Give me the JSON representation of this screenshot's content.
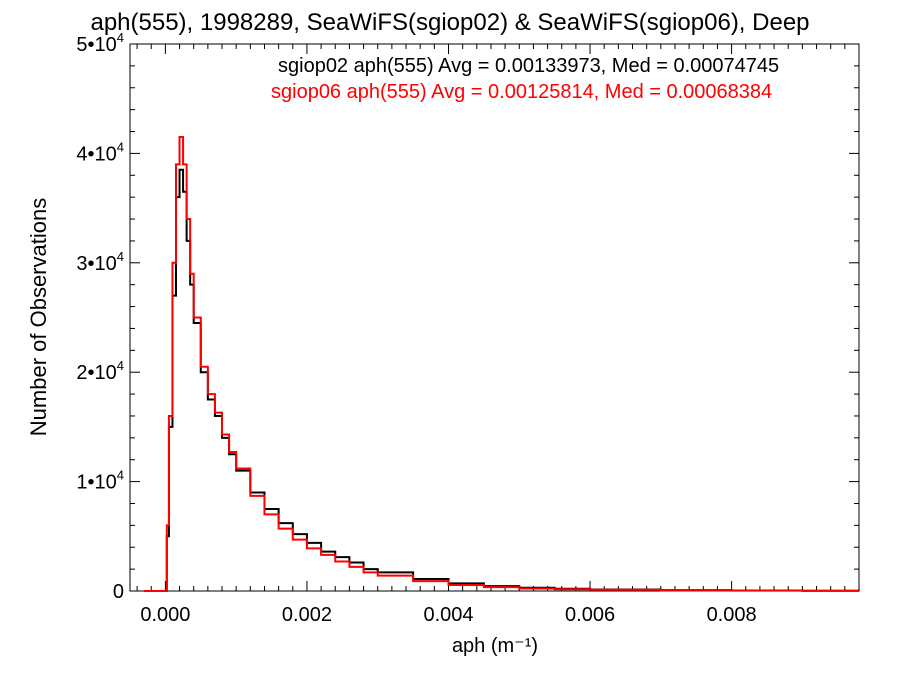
{
  "chart_data": {
    "type": "line",
    "title": "aph(555), 1998289, SeaWiFS(sgiop02) & SeaWiFS(sgiop06), Deep",
    "xlabel": "aph (m⁻¹)",
    "ylabel": "Number of Observations",
    "xlim": [
      -0.0005,
      0.0098
    ],
    "ylim": [
      0,
      50000
    ],
    "xticks": [
      {
        "value": 0.0,
        "label": "0.000"
      },
      {
        "value": 0.002,
        "label": "0.002"
      },
      {
        "value": 0.004,
        "label": "0.004"
      },
      {
        "value": 0.006,
        "label": "0.006"
      },
      {
        "value": 0.008,
        "label": "0.008"
      }
    ],
    "yticks": [
      {
        "value": 0,
        "mant": "0",
        "exp": ""
      },
      {
        "value": 10000,
        "mant": "1•10",
        "exp": "4"
      },
      {
        "value": 20000,
        "mant": "2•10",
        "exp": "4"
      },
      {
        "value": 30000,
        "mant": "3•10",
        "exp": "4"
      },
      {
        "value": 40000,
        "mant": "4•10",
        "exp": "4"
      },
      {
        "value": 50000,
        "mant": "5•10",
        "exp": "4"
      }
    ],
    "grid": false,
    "legend_position": "top-right",
    "series": [
      {
        "name": "sgiop02 aph(555) Avg = 0.00133973, Med = 0.00074745",
        "color": "#000000",
        "x": [
          -0.0003,
          0.0,
          2e-05,
          5e-05,
          0.0001,
          0.00015,
          0.0002,
          0.00025,
          0.0003,
          0.00035,
          0.0004,
          0.0005,
          0.0006,
          0.0007,
          0.0008,
          0.0009,
          0.001,
          0.0012,
          0.0014,
          0.0016,
          0.0018,
          0.002,
          0.0022,
          0.0024,
          0.0026,
          0.0028,
          0.003,
          0.0035,
          0.004,
          0.0045,
          0.005,
          0.0055,
          0.006,
          0.007,
          0.008,
          0.009,
          0.0098
        ],
        "y": [
          0,
          0,
          5000,
          15000,
          27000,
          36000,
          38500,
          36500,
          32000,
          28000,
          24500,
          20000,
          17500,
          16000,
          14000,
          12500,
          11000,
          9000,
          7500,
          6200,
          5200,
          4400,
          3600,
          3100,
          2600,
          2000,
          1700,
          1100,
          700,
          450,
          300,
          200,
          140,
          80,
          40,
          20,
          10
        ]
      },
      {
        "name": "sgiop06 aph(555) Avg = 0.00125814, Med = 0.00068384",
        "color": "#ff0000",
        "x": [
          -0.0003,
          0.0,
          2e-05,
          5e-05,
          0.0001,
          0.00015,
          0.0002,
          0.00025,
          0.0003,
          0.00035,
          0.0004,
          0.0005,
          0.0006,
          0.0007,
          0.0008,
          0.0009,
          0.001,
          0.0012,
          0.0014,
          0.0016,
          0.0018,
          0.002,
          0.0022,
          0.0024,
          0.0026,
          0.0028,
          0.003,
          0.0035,
          0.004,
          0.0045,
          0.005,
          0.0055,
          0.006,
          0.007,
          0.008,
          0.009,
          0.0098
        ],
        "y": [
          0,
          0,
          6000,
          16000,
          30000,
          39000,
          41500,
          39000,
          34000,
          29000,
          25000,
          20500,
          18000,
          16300,
          14300,
          12700,
          11200,
          8700,
          7000,
          5700,
          4700,
          3900,
          3300,
          2700,
          2200,
          1700,
          1400,
          900,
          550,
          350,
          230,
          160,
          110,
          60,
          30,
          15,
          8
        ]
      }
    ]
  }
}
